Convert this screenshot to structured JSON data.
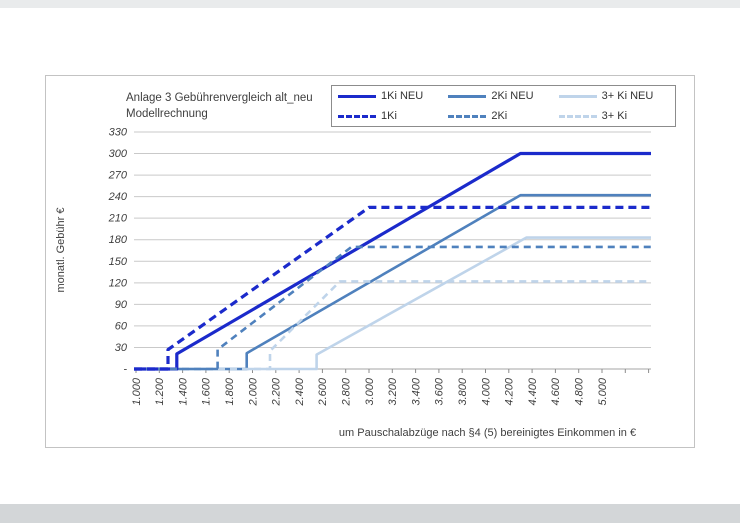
{
  "page": {
    "title_line1": "Anlage 3 Gebührenvergleich alt_neu",
    "title_line2": "Modellrechnung",
    "y_axis_title": "monatl. Gebühr €",
    "x_axis_title": "um Pauschalabzüge nach §4 (5) bereinigtes Einkommen in €"
  },
  "chart_data": {
    "type": "line",
    "title": "Anlage 3 Gebührenvergleich alt_neu Modellrechnung",
    "xlabel": "um Pauschalabzüge nach §4 (5) bereinigtes Einkommen in €",
    "ylabel": "monatl. Gebühr €",
    "grid": true,
    "legend_position": "top-right",
    "xlim": [
      983,
      5421
    ],
    "ylim": [
      0,
      330
    ],
    "x_tick_values": [
      1000,
      1200,
      1400,
      1600,
      1800,
      2000,
      2200,
      2400,
      2600,
      2800,
      3000,
      3200,
      3400,
      3600,
      3800,
      4000,
      4200,
      4400,
      4600,
      4800,
      5000
    ],
    "x_tick_labels": [
      "1.000",
      "1.200",
      "1.400",
      "1.600",
      "1.800",
      "2.000",
      "2.200",
      "2.400",
      "2.600",
      "2.800",
      "3.000",
      "3.200",
      "3.400",
      "3.600",
      "3.800",
      "4.000",
      "4.200",
      "4.400",
      "4.600",
      "4.800",
      "5.000"
    ],
    "y_tick_values": [
      330,
      300,
      270,
      240,
      210,
      180,
      150,
      120,
      90,
      60,
      30,
      0
    ],
    "y_tick_labels": [
      "330",
      "300",
      "270",
      "240",
      "210",
      "180",
      "150",
      "120",
      "90",
      "60",
      "30",
      "-"
    ],
    "series": [
      {
        "name": "1Ki NEU",
        "style": "solid",
        "color": "#1b2acb",
        "width": 3.2,
        "points": [
          [
            983,
            0
          ],
          [
            1350,
            0
          ],
          [
            1350,
            21
          ],
          [
            4300,
            300
          ],
          [
            5421,
            300
          ]
        ]
      },
      {
        "name": "2Ki NEU",
        "style": "solid",
        "color": "#4f81bd",
        "width": 2.6,
        "points": [
          [
            983,
            0
          ],
          [
            1950,
            0
          ],
          [
            1950,
            22
          ],
          [
            4300,
            242
          ],
          [
            5421,
            242
          ]
        ]
      },
      {
        "name": "3+ Ki NEU",
        "style": "solid",
        "color": "#bfd4ea",
        "width": 2.6,
        "points": [
          [
            983,
            0
          ],
          [
            2550,
            0
          ],
          [
            2550,
            20
          ],
          [
            4350,
            183
          ],
          [
            5421,
            183
          ]
        ]
      },
      {
        "name": "1Ki",
        "style": "dashed",
        "color": "#1b2acb",
        "width": 3.2,
        "points": [
          [
            983,
            0
          ],
          [
            1275,
            0
          ],
          [
            1275,
            27
          ],
          [
            3000,
            225
          ],
          [
            5421,
            225
          ]
        ]
      },
      {
        "name": "2Ki",
        "style": "dashed",
        "color": "#4f81bd",
        "width": 2.6,
        "points": [
          [
            983,
            0
          ],
          [
            1700,
            0
          ],
          [
            1700,
            27
          ],
          [
            2850,
            170
          ],
          [
            5421,
            170
          ]
        ]
      },
      {
        "name": "3+ Ki",
        "style": "dashed",
        "color": "#bfd4ea",
        "width": 2.6,
        "points": [
          [
            983,
            0
          ],
          [
            2150,
            0
          ],
          [
            2150,
            25
          ],
          [
            2750,
            122
          ],
          [
            5421,
            122
          ]
        ]
      }
    ],
    "draw_order": [
      2,
      1,
      0,
      5,
      4,
      3
    ],
    "axis_color": "#a6a6a6",
    "gridline_color": "#c9c9c9",
    "tick_color": "#8c8c8c",
    "label_color": "#404040"
  }
}
